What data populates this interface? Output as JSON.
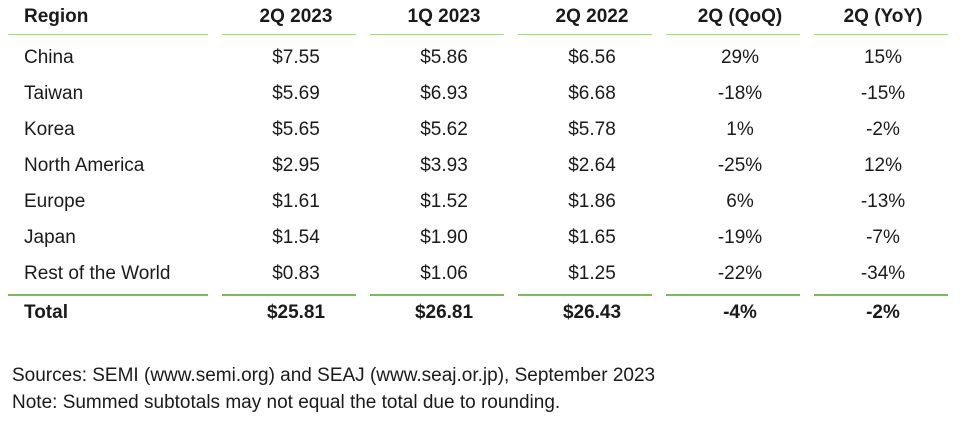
{
  "table": {
    "columns": [
      "Region",
      "2Q 2023",
      "1Q 2023",
      "2Q 2022",
      "2Q (QoQ)",
      "2Q (YoY)"
    ],
    "rows": [
      [
        "China",
        "$7.55",
        "$5.86",
        "$6.56",
        "29%",
        "15%"
      ],
      [
        "Taiwan",
        "$5.69",
        "$6.93",
        "$6.68",
        "-18%",
        "-15%"
      ],
      [
        "Korea",
        "$5.65",
        "$5.62",
        "$5.78",
        "1%",
        "-2%"
      ],
      [
        "North America",
        "$2.95",
        "$3.93",
        "$2.64",
        "-25%",
        "12%"
      ],
      [
        "Europe",
        "$1.61",
        "$1.52",
        "$1.86",
        "6%",
        "-13%"
      ],
      [
        "Japan",
        "$1.54",
        "$1.90",
        "$1.65",
        "-19%",
        "-7%"
      ],
      [
        "Rest of the World",
        "$0.83",
        "$1.06",
        "$1.25",
        "-22%",
        "-34%"
      ]
    ],
    "total": [
      "Total",
      "$25.81",
      "$26.81",
      "$26.43",
      "-4%",
      "-2%"
    ]
  },
  "notes": {
    "sources": "Sources: SEMI (www.semi.org) and SEAJ (www.seaj.or.jp), September 2023",
    "note": "Note: Summed subtotals may not equal the total due to rounding."
  },
  "colors": {
    "rule_light": "#a7d48a",
    "rule_heavy": "#7dbb5a"
  }
}
